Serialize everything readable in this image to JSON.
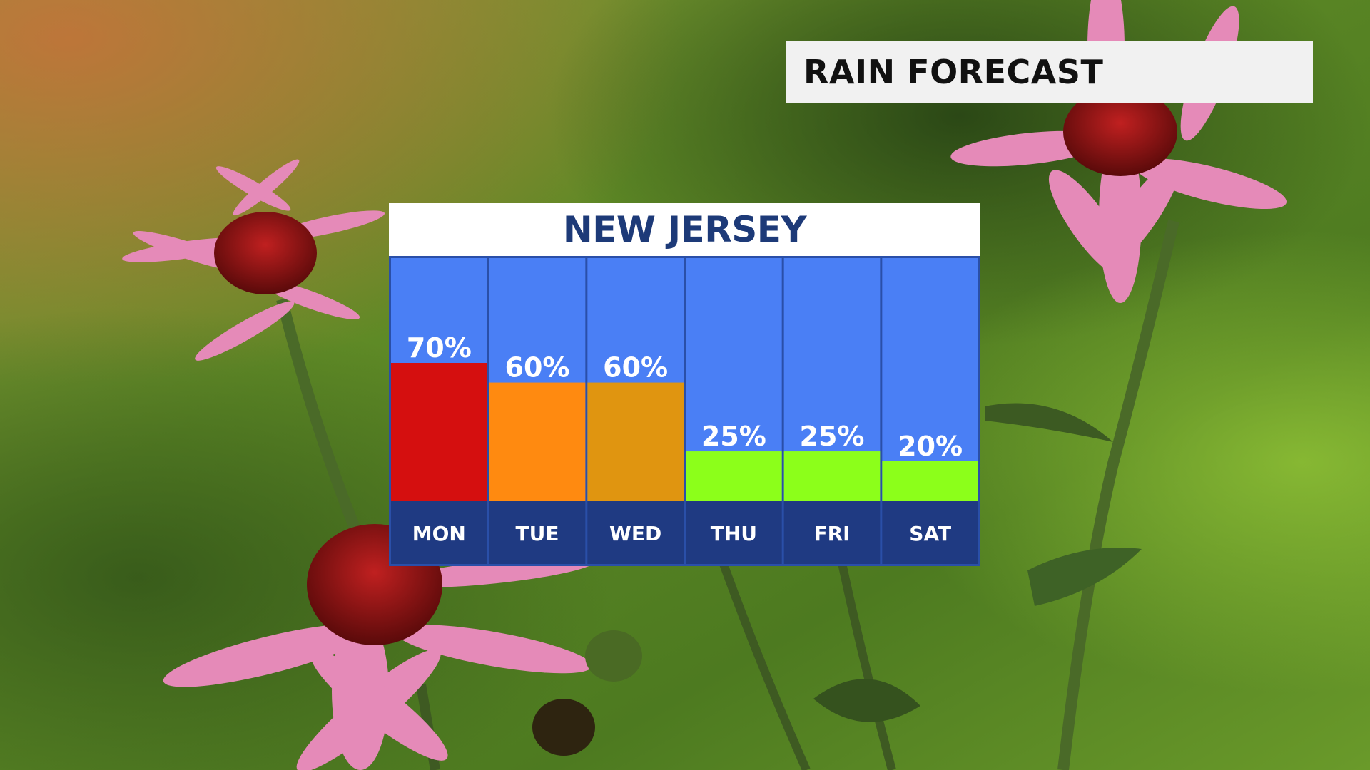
{
  "header": {
    "title": "RAIN FORECAST"
  },
  "panel": {
    "title": "NEW JERSEY"
  },
  "colors": {
    "column_bg": "#4a7ff5",
    "label_band": "#1f3a82",
    "border": "#2a4fa8"
  },
  "chart_data": {
    "type": "bar",
    "title": "NEW JERSEY",
    "categories": [
      "MON",
      "TUE",
      "WED",
      "THU",
      "FRI",
      "SAT"
    ],
    "values": [
      70,
      60,
      60,
      25,
      25,
      20
    ],
    "value_labels": [
      "70%",
      "60%",
      "60%",
      "25%",
      "25%",
      "20%"
    ],
    "bar_colors": [
      "#d50f0f",
      "#ff8a10",
      "#e09510",
      "#8cff1a",
      "#8cff1a",
      "#8cff1a"
    ],
    "ylim": [
      0,
      100
    ],
    "grid": false,
    "legend": "none"
  }
}
